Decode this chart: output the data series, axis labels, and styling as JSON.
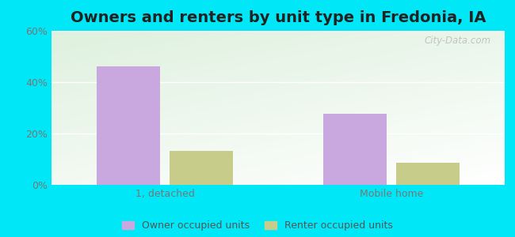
{
  "title": "Owners and renters by unit type in Fredonia, IA",
  "categories": [
    "1, detached",
    "Mobile home"
  ],
  "owner_values": [
    46.2,
    27.6
  ],
  "renter_values": [
    13.3,
    8.6
  ],
  "owner_color": "#c9a8e0",
  "renter_color": "#c8cc8a",
  "ylim": [
    0,
    60
  ],
  "yticks": [
    0,
    20,
    40,
    60
  ],
  "ytick_labels": [
    "0%",
    "20%",
    "40%",
    "60%"
  ],
  "bar_width": 0.28,
  "background_color": "#00e8f8",
  "legend_labels": [
    "Owner occupied units",
    "Renter occupied units"
  ],
  "watermark": "City-Data.com",
  "title_fontsize": 14,
  "tick_fontsize": 9,
  "legend_fontsize": 9
}
